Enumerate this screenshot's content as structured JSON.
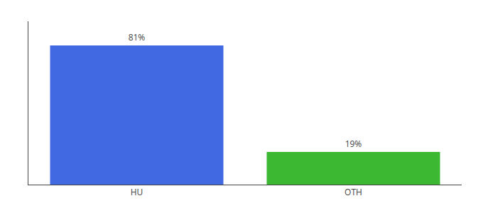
{
  "chart_data": {
    "type": "bar",
    "categories": [
      "HU",
      "OTH"
    ],
    "values": [
      81,
      19
    ],
    "value_labels": [
      "81%",
      "19%"
    ],
    "colors": [
      "#4169e1",
      "#3cb832"
    ],
    "ylim": [
      0,
      95
    ],
    "data_labels": true,
    "tick_labels": "x",
    "grid": false
  }
}
